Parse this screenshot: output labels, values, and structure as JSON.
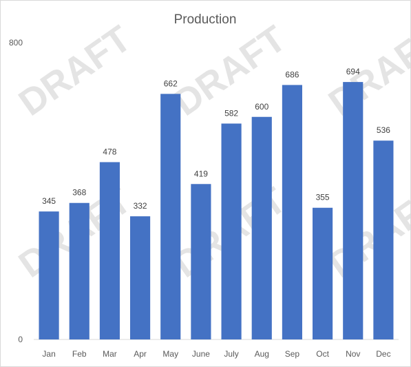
{
  "chart_data": {
    "type": "bar",
    "title": "Production",
    "categories": [
      "Jan",
      "Feb",
      "Mar",
      "Apr",
      "May",
      "June",
      "July",
      "Aug",
      "Sep",
      "Oct",
      "Nov",
      "Dec"
    ],
    "values": [
      345,
      368,
      478,
      332,
      662,
      419,
      582,
      600,
      686,
      355,
      694,
      536
    ],
    "ylim": [
      0,
      800
    ],
    "y_ticks": [
      0,
      800
    ],
    "xlabel": "",
    "ylabel": "",
    "grid": false,
    "legend": "none",
    "data_labels": true,
    "bar_color": "#4472c4"
  },
  "watermark": {
    "text": "DRAFT",
    "color": "#cfcfcf"
  }
}
